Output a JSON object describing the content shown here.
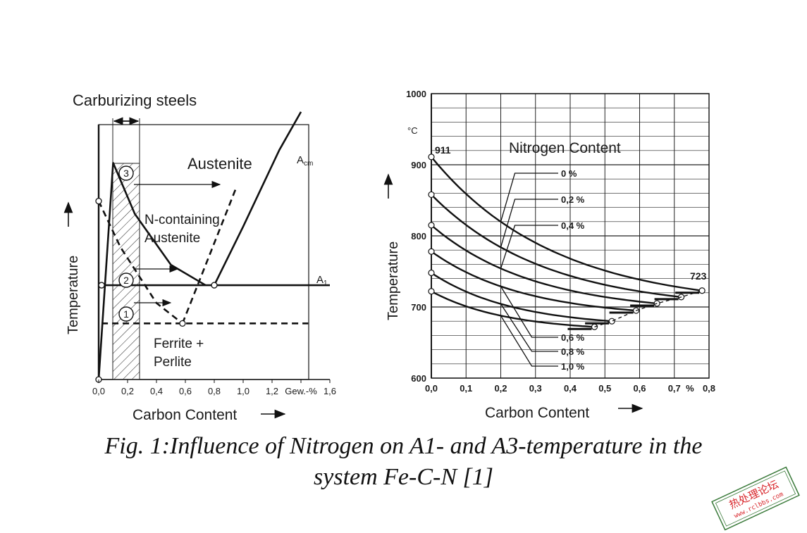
{
  "caption": {
    "line1": "Fig. 1:Influence of Nitrogen on A1- and A3-temperature in the",
    "line2": "system Fe-C-N [1]"
  },
  "stamp": {
    "text1": "热处理论坛",
    "text2": "www.rclbbs.com",
    "color": "#d8262b"
  },
  "chart_data": [
    {
      "type": "line",
      "title": "Carburizing steels",
      "xlabel": "Carbon Content",
      "ylabel": "Temperature",
      "x_ticks": [
        "0,0",
        "0,2",
        "0,4",
        "0,6",
        "0,8",
        "1,0",
        "1,2",
        "Gew.-%",
        "1,6"
      ],
      "xlim": [
        0,
        1.6
      ],
      "region_labels": {
        "austenite": "Austenite",
        "n_austenite_1": "N-containing",
        "n_austenite_2": "Austenite",
        "ferrite_1": "Ferrite +",
        "ferrite_2": "Perlite",
        "acm": "A",
        "acm_sub": "cm",
        "a1": "A",
        "a1_sub": "1"
      },
      "markers": [
        "1",
        "2",
        "3"
      ],
      "carburizing_band": [
        0.1,
        0.27
      ],
      "series": [
        {
          "style": "solid",
          "points": [
            [
              0.0,
              0.0
            ],
            [
              0.1,
              0.85
            ],
            [
              0.25,
              0.65
            ],
            [
              0.5,
              0.45
            ],
            [
              0.74,
              0.37
            ]
          ]
        },
        {
          "style": "solid",
          "points": [
            [
              0.8,
              0.37
            ],
            [
              1.0,
              0.6
            ],
            [
              1.25,
              0.9
            ],
            [
              1.4,
              1.05
            ]
          ]
        },
        {
          "style": "solid",
          "points": [
            [
              0.02,
              0.37
            ],
            [
              1.6,
              0.37
            ]
          ]
        },
        {
          "style": "dashed",
          "points": [
            [
              0.0,
              0.7
            ],
            [
              0.15,
              0.52
            ],
            [
              0.4,
              0.3
            ],
            [
              0.58,
              0.22
            ]
          ]
        },
        {
          "style": "dashed",
          "points": [
            [
              0.58,
              0.22
            ],
            [
              0.95,
              0.75
            ]
          ]
        },
        {
          "style": "dashed",
          "points": [
            [
              0.02,
              0.22
            ],
            [
              1.45,
              0.22
            ]
          ]
        }
      ]
    },
    {
      "type": "line",
      "title": "Nitrogen Content",
      "xlabel": "Carbon Content",
      "ylabel": "Temperature",
      "unit": "°C",
      "ylim": [
        600,
        1000
      ],
      "xlim": [
        0,
        0.8
      ],
      "y_ticks": [
        "600",
        "700",
        "800",
        "900",
        "1000"
      ],
      "x_ticks": [
        "0,0",
        "0,1",
        "0,2",
        "0,3",
        "0,4",
        "0,5",
        "0,6",
        "0,7",
        "%",
        "0,8"
      ],
      "annotations": {
        "start": "911",
        "end": "723"
      },
      "series": [
        {
          "name": "0 %",
          "x0": 0.0,
          "y0": 911,
          "x1": 0.78,
          "y1": 723
        },
        {
          "name": "0,2 %",
          "x0": 0.0,
          "y0": 858,
          "x1": 0.72,
          "y1": 714
        },
        {
          "name": "0,4 %",
          "x0": 0.0,
          "y0": 815,
          "x1": 0.65,
          "y1": 705
        },
        {
          "name": "0,6 %",
          "x0": 0.0,
          "y0": 778,
          "x1": 0.59,
          "y1": 695
        },
        {
          "name": "0,8 %",
          "x0": 0.0,
          "y0": 748,
          "x1": 0.52,
          "y1": 680
        },
        {
          "name": "1,0 %",
          "x0": 0.0,
          "y0": 722,
          "x1": 0.47,
          "y1": 672
        }
      ]
    }
  ]
}
